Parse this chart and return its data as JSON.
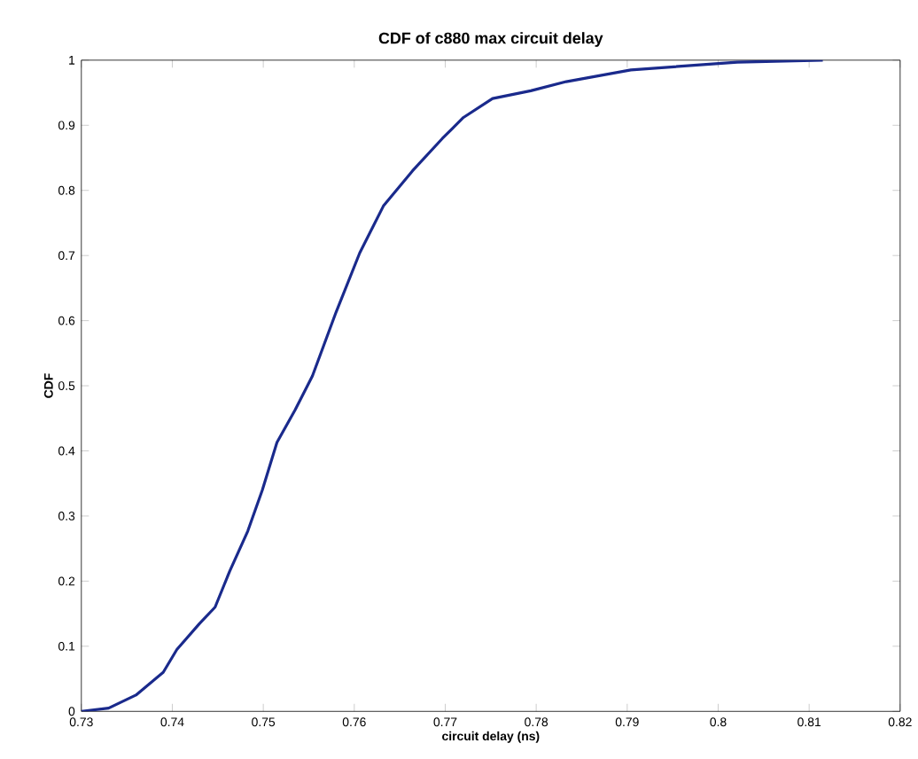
{
  "chart_data": {
    "type": "line",
    "title": "CDF of c880 max circuit delay",
    "xlabel": "circuit delay (ns)",
    "ylabel": "CDF",
    "x": [
      0.73,
      0.733,
      0.736,
      0.739,
      0.7405,
      0.743,
      0.7447,
      0.7463,
      0.7483,
      0.7499,
      0.7515,
      0.7535,
      0.7554,
      0.758,
      0.7606,
      0.7632,
      0.7664,
      0.7697,
      0.772,
      0.7752,
      0.7794,
      0.7833,
      0.7904,
      0.8021,
      0.8115
    ],
    "series": [
      {
        "color": "#1a2a8c",
        "values": [
          0,
          0.005,
          0.025,
          0.06,
          0.095,
          0.135,
          0.16,
          0.215,
          0.277,
          0.34,
          0.413,
          0.463,
          0.515,
          0.613,
          0.704,
          0.776,
          0.83,
          0.88,
          0.912,
          0.941,
          0.953,
          0.967,
          0.985,
          0.997,
          1.0
        ]
      }
    ],
    "xlim": [
      0.73,
      0.82
    ],
    "ylim": [
      0,
      1
    ],
    "xticks": [
      0.73,
      0.74,
      0.75,
      0.76,
      0.77,
      0.78,
      0.79,
      0.8,
      0.81,
      0.82
    ],
    "yticks": [
      0,
      0.1,
      0.2,
      0.3,
      0.4,
      0.5,
      0.6,
      0.7,
      0.8,
      0.9,
      1
    ],
    "grid": false,
    "marker": "none",
    "line_style": "solid"
  }
}
